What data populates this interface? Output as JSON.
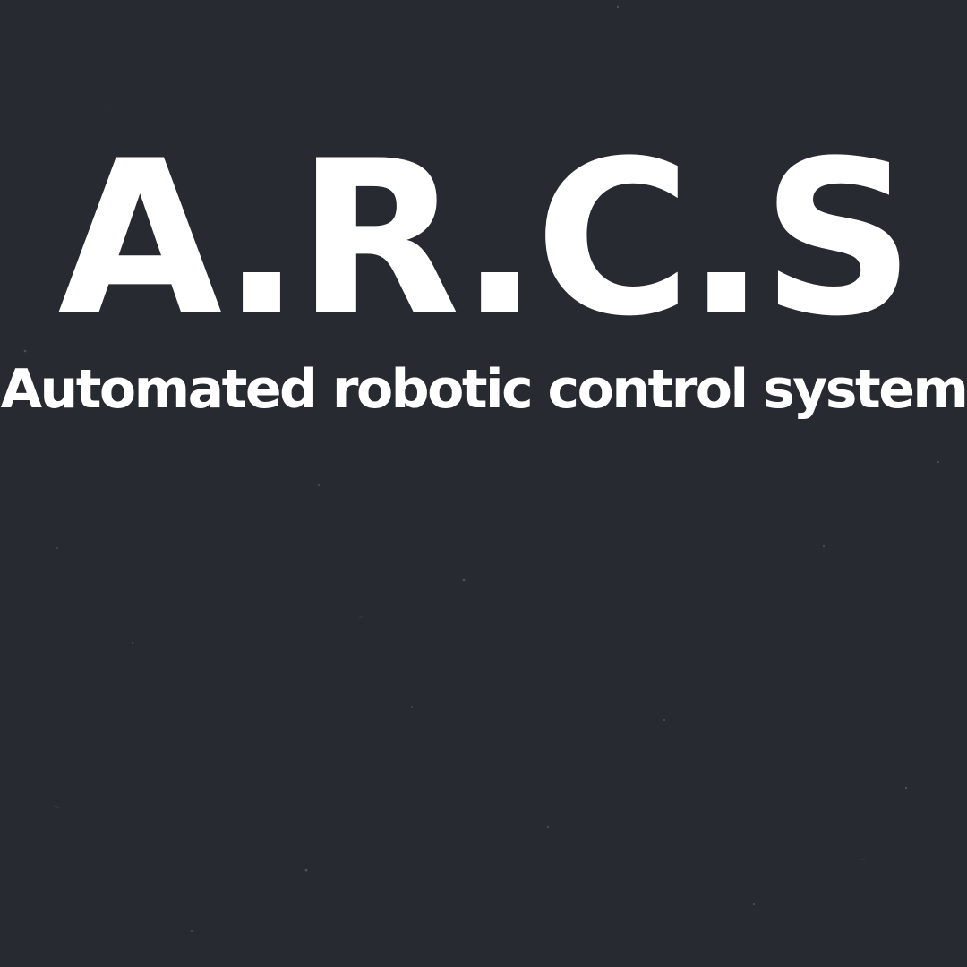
{
  "background": {
    "color": "#272b31",
    "texture": "dark-paper-speckle"
  },
  "title": {
    "text": "A.R.C.S",
    "color": "#ffffff"
  },
  "subtitle": {
    "text": "Automated robotic control system",
    "color": "#ffffff"
  }
}
